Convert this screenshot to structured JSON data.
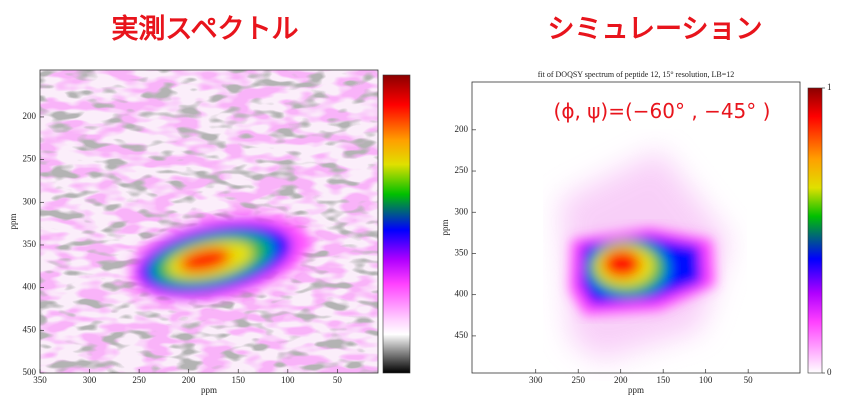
{
  "chart_data": [
    {
      "type": "heatmap",
      "title": "実測スペクトル",
      "x_label": "ppm",
      "y_label": "ppm",
      "xlim": [
        350,
        9
      ],
      "xticks": [
        350,
        300,
        250,
        200,
        150,
        100,
        50
      ],
      "ylim": [
        145,
        500
      ],
      "yticks": [
        200,
        250,
        300,
        350,
        400,
        450,
        500
      ]
    },
    {
      "type": "heatmap",
      "title": "シミュレーション",
      "subtitle": "fit of DOQSY spectrum of peptide 12, 15° resolution, LB=12",
      "annotation": "(ϕ, ψ)=(−60° , −45° )",
      "x_label": "ppm",
      "y_label": "ppm",
      "xlim": [
        375,
        -11
      ],
      "xticks": [
        300,
        250,
        200,
        150,
        100,
        50
      ],
      "ylim": [
        142,
        495
      ],
      "yticks": [
        200,
        250,
        300,
        350,
        400,
        450
      ],
      "colorbar_lim": [
        0,
        1
      ],
      "colorbar_ticks": [
        0,
        1
      ]
    }
  ]
}
